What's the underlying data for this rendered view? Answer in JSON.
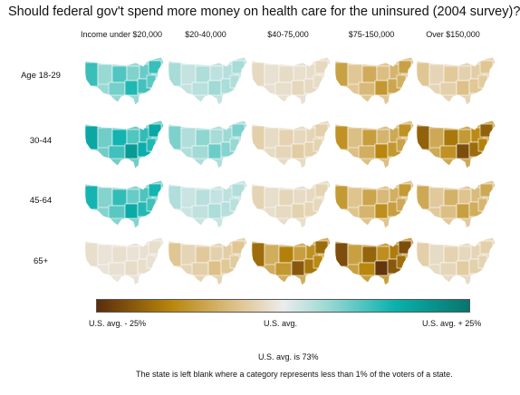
{
  "title": "Should federal gov't spend more money on health care for the uninsured (2004 survey)?",
  "chart_data": {
    "type": "heatmap",
    "columns": [
      "Income under $20,000",
      "$20-40,000",
      "$40-75,000",
      "$75-150,000",
      "Over $150,000"
    ],
    "rows": [
      {
        "label": "Age 18-29",
        "deviations": [
          14,
          7,
          -4,
          -13,
          -8
        ]
      },
      {
        "label": "30-44",
        "deviations": [
          18,
          10,
          -6,
          -15,
          -20
        ]
      },
      {
        "label": "45-64",
        "deviations": [
          16,
          6,
          -5,
          -14,
          -12
        ]
      },
      {
        "label": "65+",
        "deviations": [
          -3,
          -8,
          -19,
          -22,
          -6
        ]
      }
    ],
    "legend": {
      "left": "U.S. avg. - 25%",
      "middle": "U.S. avg.",
      "right": "U.S. avg. + 25%",
      "range": [
        -25,
        25
      ],
      "colors": [
        "#5a2d0c",
        "#b8860b",
        "#dfc48f",
        "#ececec",
        "#9ad9d4",
        "#0bb1ad",
        "#07756c"
      ]
    },
    "us_avg_text": "U.S. avg. is 73%",
    "note": "The state is left blank where a category represents less than 1% of the voters of a state."
  }
}
